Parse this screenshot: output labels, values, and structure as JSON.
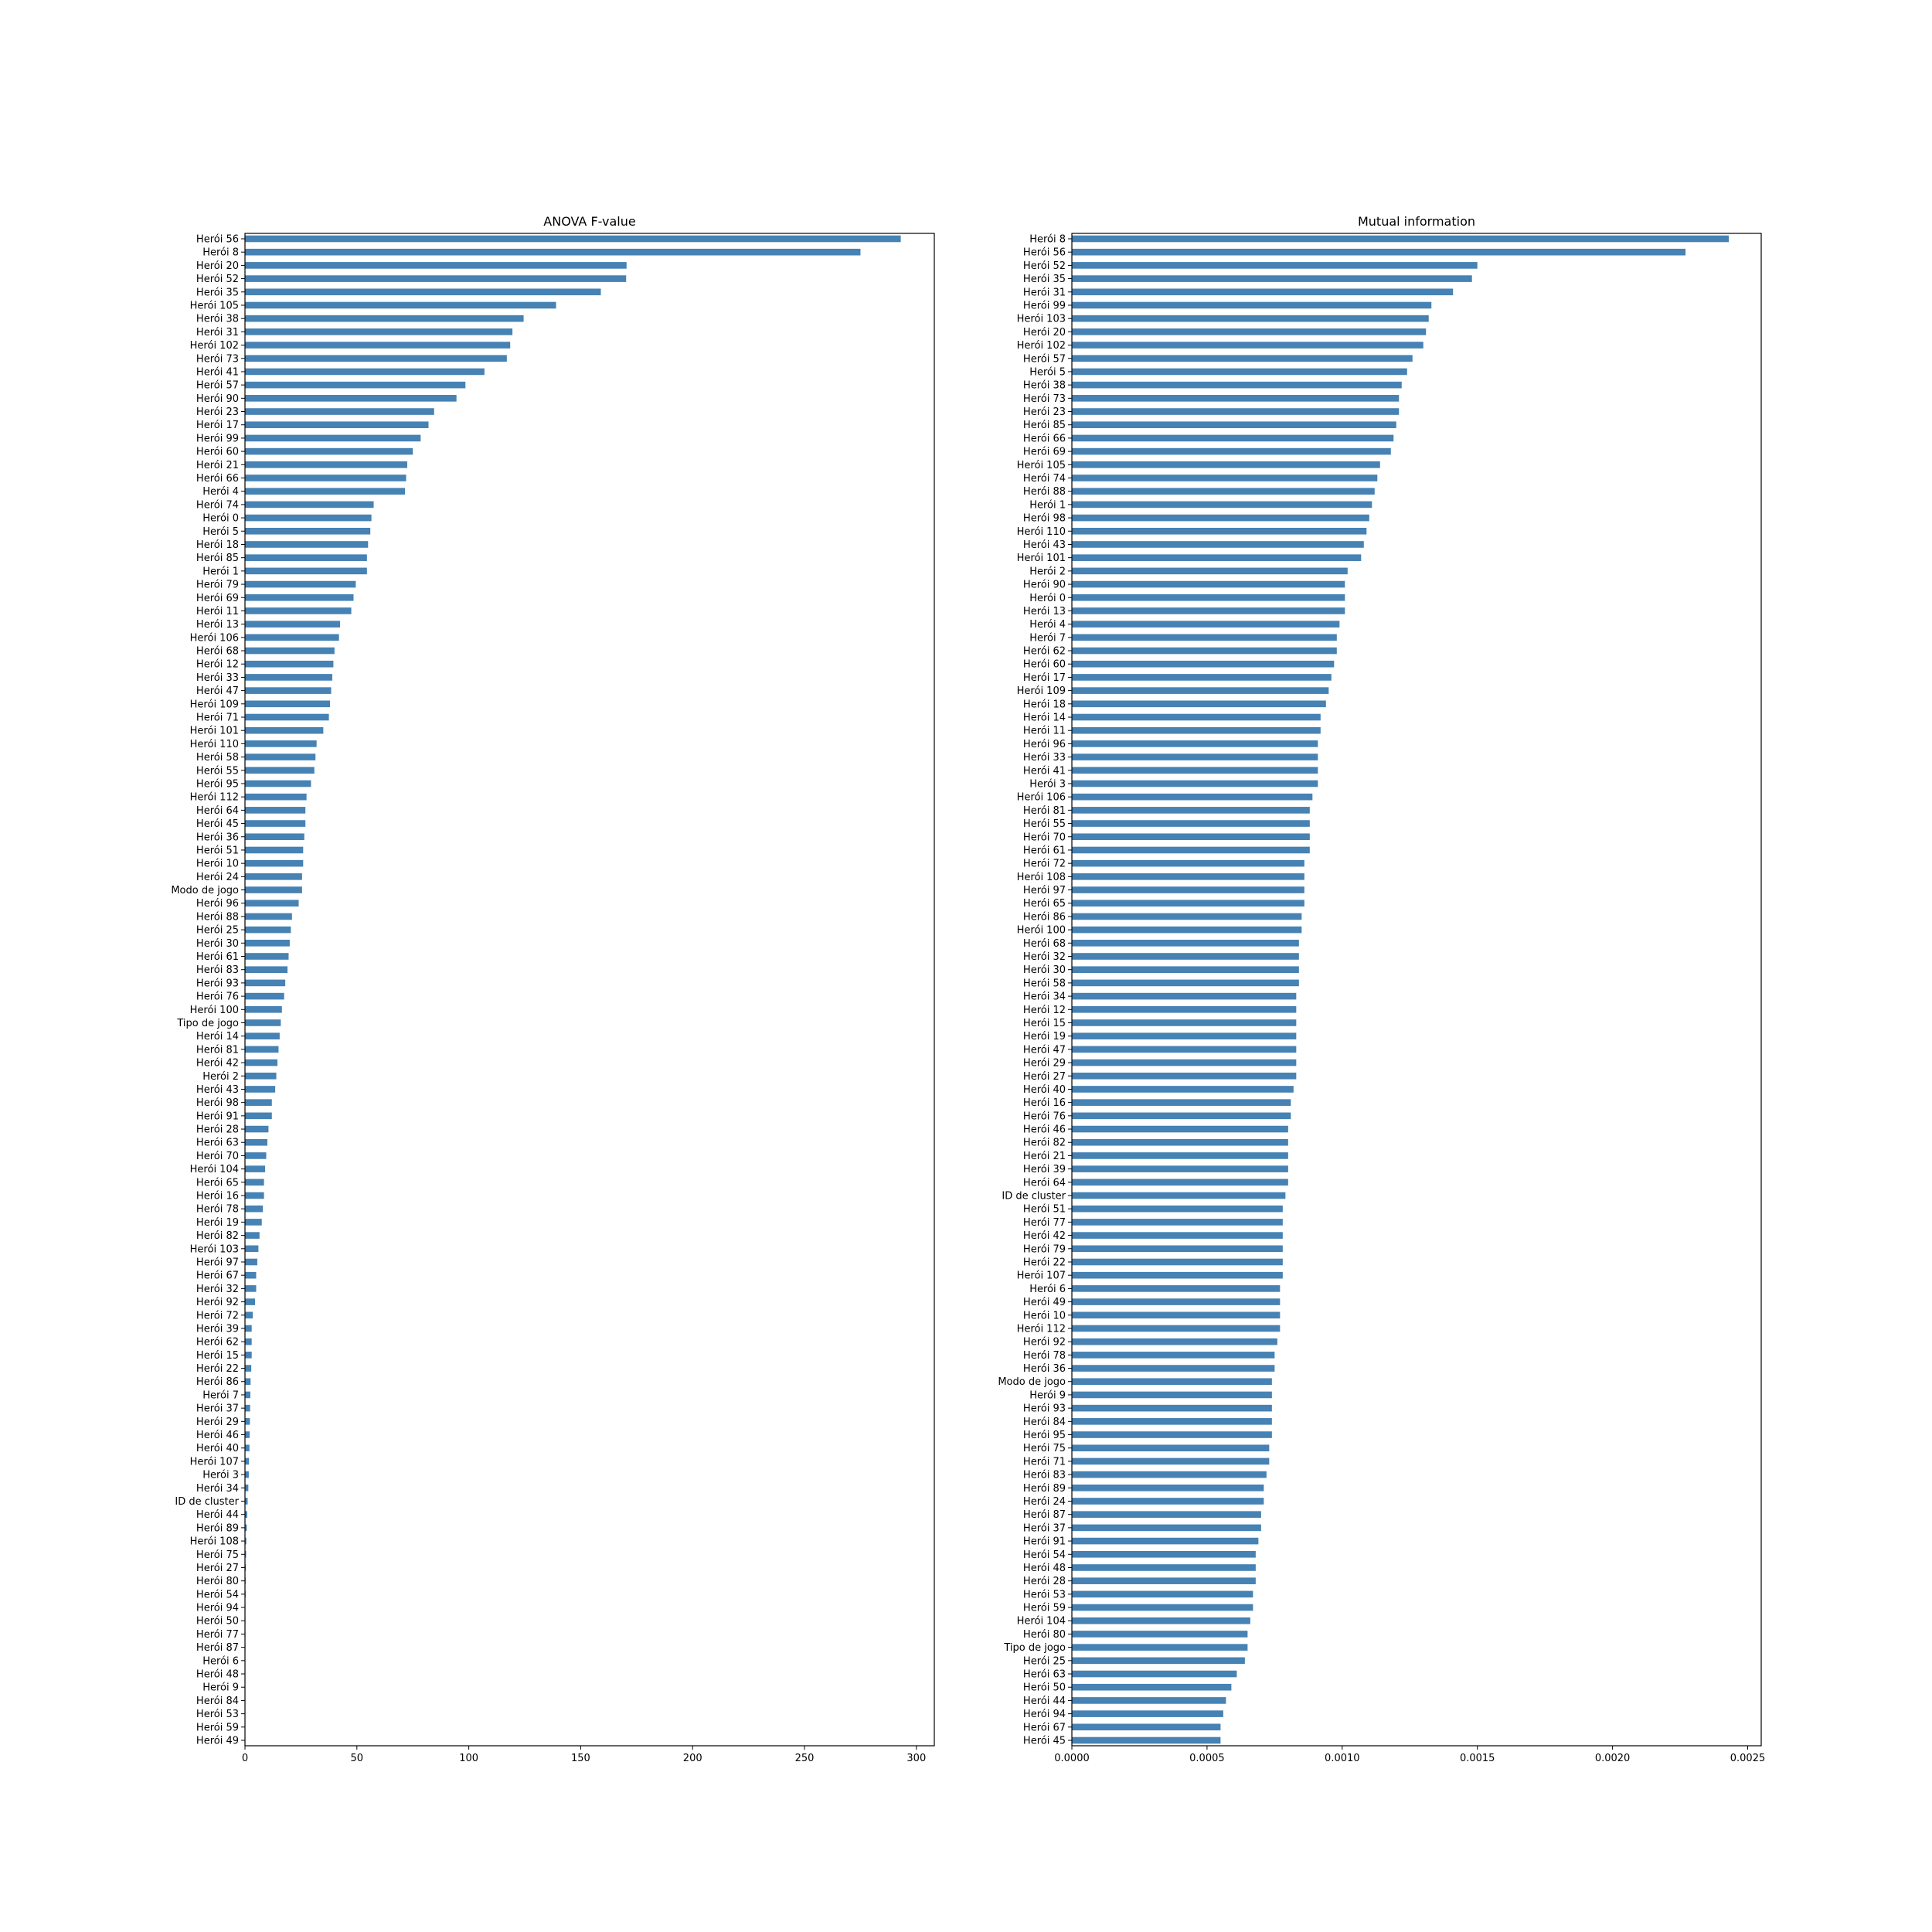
{
  "bar_color": "#4682b4",
  "chart_data": [
    {
      "type": "bar",
      "orientation": "horizontal",
      "title": "ANOVA F-value",
      "xlabel": "",
      "ylabel": "",
      "xlim": [
        0,
        308
      ],
      "x_ticks": [
        0,
        50,
        100,
        150,
        200,
        250,
        300
      ],
      "x_tick_labels": [
        "0",
        "50",
        "100",
        "150",
        "200",
        "250",
        "300"
      ],
      "grid": false,
      "legend": "none",
      "categories": [
        "Herói 56",
        "Herói 8",
        "Herói 20",
        "Herói 52",
        "Herói 35",
        "Herói 105",
        "Herói 38",
        "Herói 31",
        "Herói 102",
        "Herói 73",
        "Herói 41",
        "Herói 57",
        "Herói 90",
        "Herói 23",
        "Herói 17",
        "Herói 99",
        "Herói 60",
        "Herói 21",
        "Herói 66",
        "Herói 4",
        "Herói 74",
        "Herói 0",
        "Herói 5",
        "Herói 18",
        "Herói 85",
        "Herói 1",
        "Herói 79",
        "Herói 69",
        "Herói 11",
        "Herói 13",
        "Herói 106",
        "Herói 68",
        "Herói 12",
        "Herói 33",
        "Herói 47",
        "Herói 109",
        "Herói 71",
        "Herói 101",
        "Herói 110",
        "Herói 58",
        "Herói 55",
        "Herói 95",
        "Herói 112",
        "Herói 64",
        "Herói 45",
        "Herói 36",
        "Herói 51",
        "Herói 10",
        "Herói 24",
        "Modo de jogo",
        "Herói 96",
        "Herói 88",
        "Herói 25",
        "Herói 30",
        "Herói 61",
        "Herói 83",
        "Herói 93",
        "Herói 76",
        "Herói 100",
        "Tipo de jogo",
        "Herói 14",
        "Herói 81",
        "Herói 42",
        "Herói 2",
        "Herói 43",
        "Herói 98",
        "Herói 91",
        "Herói 28",
        "Herói 63",
        "Herói 70",
        "Herói 104",
        "Herói 65",
        "Herói 16",
        "Herói 78",
        "Herói 19",
        "Herói 82",
        "Herói 103",
        "Herói 97",
        "Herói 67",
        "Herói 32",
        "Herói 92",
        "Herói 72",
        "Herói 39",
        "Herói 62",
        "Herói 15",
        "Herói 22",
        "Herói 86",
        "Herói 7",
        "Herói 37",
        "Herói 29",
        "Herói 46",
        "Herói 40",
        "Herói 107",
        "Herói 3",
        "Herói 34",
        "ID de cluster",
        "Herói 44",
        "Herói 89",
        "Herói 108",
        "Herói 75",
        "Herói 27",
        "Herói 80",
        "Herói 54",
        "Herói 94",
        "Herói 50",
        "Herói 77",
        "Herói 87",
        "Herói 6",
        "Herói 48",
        "Herói 9",
        "Herói 84",
        "Herói 53",
        "Herói 59",
        "Herói 49"
      ],
      "values": [
        293.0,
        275.0,
        170.5,
        170.3,
        159.0,
        139.0,
        124.5,
        119.5,
        118.5,
        117.0,
        107.0,
        98.5,
        94.5,
        84.5,
        82.0,
        78.5,
        75.0,
        72.5,
        72.0,
        71.5,
        57.5,
        56.5,
        56.0,
        55.0,
        54.5,
        54.5,
        49.5,
        48.5,
        47.5,
        42.5,
        42.0,
        40.0,
        39.5,
        39.0,
        38.5,
        38.0,
        37.5,
        35.0,
        32.0,
        31.5,
        31.0,
        29.5,
        27.5,
        27.0,
        27.0,
        26.5,
        26.0,
        26.0,
        25.5,
        25.5,
        24.0,
        21.0,
        20.5,
        20.0,
        19.5,
        19.0,
        18.0,
        17.5,
        16.5,
        16.0,
        15.5,
        15.0,
        14.5,
        14.0,
        13.5,
        12.0,
        12.0,
        10.5,
        10.0,
        9.5,
        9.0,
        8.5,
        8.5,
        8.0,
        7.5,
        6.5,
        6.0,
        5.5,
        5.0,
        5.0,
        4.5,
        3.5,
        3.0,
        3.0,
        3.0,
        2.8,
        2.5,
        2.4,
        2.3,
        2.2,
        2.1,
        2.0,
        1.8,
        1.7,
        1.5,
        1.2,
        1.0,
        0.8,
        0.6,
        0.5,
        0.4,
        0.3,
        0.3,
        0.2,
        0.2,
        0.2,
        0.2,
        0.1,
        0.1,
        0.1,
        0.1,
        0.05,
        0.05,
        0.02
      ]
    },
    {
      "type": "bar",
      "orientation": "horizontal",
      "title": "Mutual information",
      "xlabel": "",
      "ylabel": "",
      "xlim": [
        0,
        0.00255
      ],
      "x_ticks": [
        0,
        0.0005,
        0.001,
        0.0015,
        0.002,
        0.0025
      ],
      "x_tick_labels": [
        "0.0000",
        "0.0005",
        "0.0010",
        "0.0015",
        "0.0020",
        "0.0025"
      ],
      "grid": false,
      "legend": "none",
      "categories": [
        "Herói 8",
        "Herói 56",
        "Herói 52",
        "Herói 35",
        "Herói 31",
        "Herói 99",
        "Herói 103",
        "Herói 20",
        "Herói 102",
        "Herói 57",
        "Herói 5",
        "Herói 38",
        "Herói 73",
        "Herói 23",
        "Herói 85",
        "Herói 66",
        "Herói 69",
        "Herói 105",
        "Herói 74",
        "Herói 88",
        "Herói 1",
        "Herói 98",
        "Herói 110",
        "Herói 43",
        "Herói 101",
        "Herói 2",
        "Herói 90",
        "Herói 0",
        "Herói 13",
        "Herói 4",
        "Herói 7",
        "Herói 62",
        "Herói 60",
        "Herói 17",
        "Herói 109",
        "Herói 18",
        "Herói 14",
        "Herói 11",
        "Herói 96",
        "Herói 33",
        "Herói 41",
        "Herói 3",
        "Herói 106",
        "Herói 81",
        "Herói 55",
        "Herói 70",
        "Herói 61",
        "Herói 72",
        "Herói 108",
        "Herói 97",
        "Herói 65",
        "Herói 86",
        "Herói 100",
        "Herói 68",
        "Herói 32",
        "Herói 30",
        "Herói 58",
        "Herói 34",
        "Herói 12",
        "Herói 15",
        "Herói 19",
        "Herói 47",
        "Herói 29",
        "Herói 27",
        "Herói 40",
        "Herói 16",
        "Herói 76",
        "Herói 46",
        "Herói 82",
        "Herói 21",
        "Herói 39",
        "Herói 64",
        "ID de cluster",
        "Herói 51",
        "Herói 77",
        "Herói 42",
        "Herói 79",
        "Herói 22",
        "Herói 107",
        "Herói 6",
        "Herói 49",
        "Herói 10",
        "Herói 112",
        "Herói 92",
        "Herói 78",
        "Herói 36",
        "Modo de jogo",
        "Herói 9",
        "Herói 93",
        "Herói 84",
        "Herói 95",
        "Herói 75",
        "Herói 71",
        "Herói 83",
        "Herói 89",
        "Herói 24",
        "Herói 87",
        "Herói 37",
        "Herói 91",
        "Herói 54",
        "Herói 48",
        "Herói 28",
        "Herói 53",
        "Herói 59",
        "Herói 104",
        "Herói 80",
        "Tipo de jogo",
        "Herói 25",
        "Herói 63",
        "Herói 50",
        "Herói 44",
        "Herói 94",
        "Herói 67",
        "Herói 45"
      ],
      "values": [
        0.00243,
        0.00227,
        0.0015,
        0.00148,
        0.00141,
        0.00133,
        0.00132,
        0.00131,
        0.0013,
        0.00126,
        0.00124,
        0.00122,
        0.00121,
        0.00121,
        0.0012,
        0.00119,
        0.00118,
        0.00114,
        0.00113,
        0.00112,
        0.00111,
        0.0011,
        0.00109,
        0.00108,
        0.00107,
        0.00102,
        0.00101,
        0.00101,
        0.00101,
        0.00099,
        0.00098,
        0.00098,
        0.00097,
        0.00096,
        0.00095,
        0.00094,
        0.00092,
        0.00092,
        0.00091,
        0.00091,
        0.00091,
        0.00091,
        0.00089,
        0.00088,
        0.00088,
        0.00088,
        0.00088,
        0.00086,
        0.00086,
        0.00086,
        0.00086,
        0.00085,
        0.00085,
        0.00084,
        0.00084,
        0.00084,
        0.00084,
        0.00083,
        0.00083,
        0.00083,
        0.00083,
        0.00083,
        0.00083,
        0.00083,
        0.00082,
        0.00081,
        0.00081,
        0.0008,
        0.0008,
        0.0008,
        0.0008,
        0.0008,
        0.00079,
        0.00078,
        0.00078,
        0.00078,
        0.00078,
        0.00078,
        0.00078,
        0.00077,
        0.00077,
        0.00077,
        0.00077,
        0.00076,
        0.00075,
        0.00075,
        0.00074,
        0.00074,
        0.00074,
        0.00074,
        0.00074,
        0.00073,
        0.00073,
        0.00072,
        0.00071,
        0.00071,
        0.0007,
        0.0007,
        0.00069,
        0.00068,
        0.00068,
        0.00068,
        0.00067,
        0.00067,
        0.00066,
        0.00065,
        0.00065,
        0.00064,
        0.00061,
        0.00059,
        0.00057,
        0.00056,
        0.00055,
        0.00055
      ]
    }
  ]
}
